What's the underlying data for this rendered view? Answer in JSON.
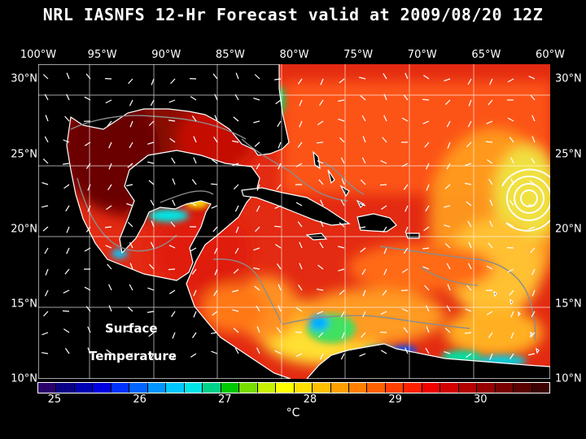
{
  "title": "NRL IASNFS  12-Hr Forecast valid at 2009/08/20 12Z",
  "map": {
    "longitude_labels": [
      "100°W",
      "95°W",
      "90°W",
      "85°W",
      "80°W",
      "75°W",
      "70°W",
      "65°W",
      "60°W"
    ],
    "latitude_labels": [
      "30°N",
      "25°N",
      "20°N",
      "15°N",
      "10°N"
    ],
    "overlay_label_line1": "Surface",
    "overlay_label_line2": "Temperature",
    "lon_range_deg": [
      -100,
      -60
    ],
    "lat_range_deg": [
      10,
      31
    ],
    "colors": {
      "land": "#000000",
      "coastline": "#ffffff",
      "bathymetry_contour": "#8c8c8c",
      "wind_vectors": "#ffffff",
      "graticule": "#ffffff"
    }
  },
  "colorbar": {
    "tick_labels": [
      "25",
      "26",
      "27",
      "28",
      "29",
      "30"
    ],
    "tick_values": [
      25,
      26,
      27,
      28,
      29,
      30
    ],
    "range": [
      24.8,
      30.8
    ],
    "unit": "°C",
    "colors": [
      "#2b006b",
      "#0a0087",
      "#0000b4",
      "#0000e0",
      "#0032ff",
      "#0064ff",
      "#0096ff",
      "#00c8ff",
      "#00e6e6",
      "#00d28c",
      "#00c800",
      "#78dc00",
      "#c8f000",
      "#ffff00",
      "#ffe000",
      "#ffc000",
      "#ffa000",
      "#ff8000",
      "#ff6000",
      "#ff4000",
      "#ff2000",
      "#f00000",
      "#d20000",
      "#b40000",
      "#960000",
      "#780000",
      "#5a0000",
      "#3c0000"
    ]
  }
}
